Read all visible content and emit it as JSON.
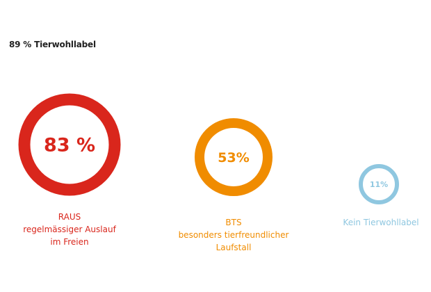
{
  "header": {
    "title": "89 % Tierwohllabel"
  },
  "chart_data": {
    "type": "bubble",
    "title": "89 % Tierwohllabel",
    "series": [
      {
        "id": "raus",
        "value": 83,
        "value_label": "83 %",
        "label_lines": [
          "RAUS",
          "regelmässiger Auslauf",
          "im Freien"
        ],
        "color": "#d9261c"
      },
      {
        "id": "bts",
        "value": 53,
        "value_label": "53%",
        "label_lines": [
          "BTS",
          "besonders tierfreundlicher",
          "Laufstall"
        ],
        "color": "#f08c00"
      },
      {
        "id": "kein",
        "value": 11,
        "value_label": "11%",
        "label_lines": [
          "Kein Tierwohllabel"
        ],
        "color": "#8fc7e0"
      }
    ]
  }
}
